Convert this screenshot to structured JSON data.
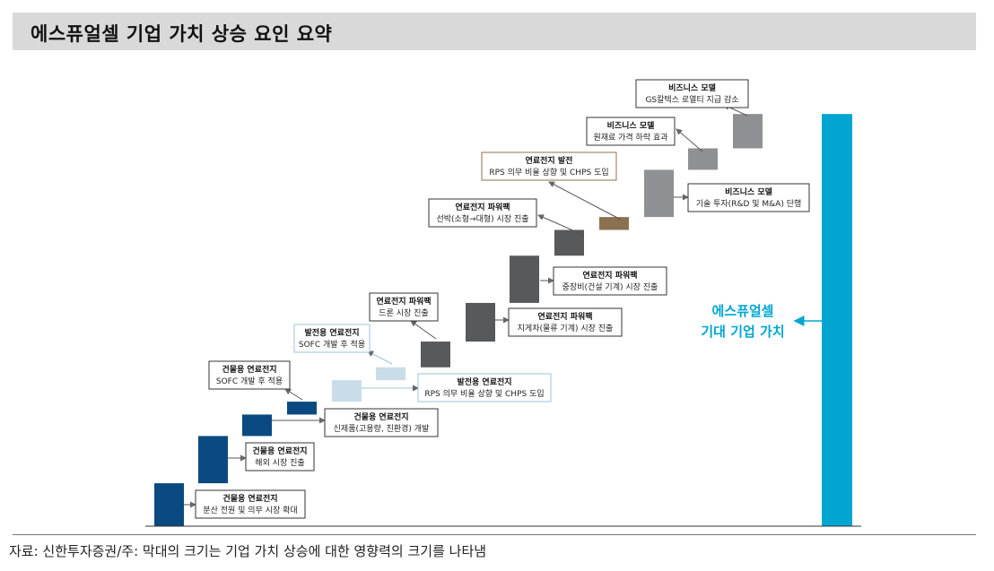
{
  "header": {
    "title": "에스퓨얼셀 기업 가치 상승 요인 요약"
  },
  "footer": {
    "source": "자료: 신한투자증권/주: 막대의 크기는 기업 가치 상승에 대한 영향력의 크기를 나타냄"
  },
  "colors": {
    "building": "#0b4a80",
    "power_gen": "#c9dde9",
    "powerpack": "#58595b",
    "power_gen_rps": "#8c7150",
    "business": "#8e9093",
    "total": "#00a6d0",
    "total_label": "#00a6d0"
  },
  "chart_data": {
    "type": "bar",
    "title": "",
    "note": "waterfall-style: floating bars, magnitude = impact on enterprise value",
    "ylim": [
      0,
      100
    ],
    "factors": [
      {
        "id": "f1",
        "group": "building",
        "title": "건물용 연료전지",
        "desc": "분산 전원 및 의무 시장 확대",
        "start": 0,
        "end": 10
      },
      {
        "id": "f2",
        "group": "building",
        "title": "건물용 연료전지",
        "desc": "해외 시장 진출",
        "start": 10,
        "end": 21
      },
      {
        "id": "f3",
        "group": "building",
        "title": "건물용 연료전지",
        "desc": "신제품(고용량, 친환경) 개발",
        "start": 21,
        "end": 26
      },
      {
        "id": "f4",
        "group": "building",
        "title": "건물용 연료전지",
        "desc": "SOFC 개발 후 적용",
        "start": 26,
        "end": 29
      },
      {
        "id": "f5",
        "group": "power_gen",
        "title": "발전용 연료전지",
        "desc": "RPS 의무 비율 상향 및 CHPS 도입",
        "start": 29,
        "end": 34
      },
      {
        "id": "f6",
        "group": "power_gen",
        "title": "발전용 연료전지",
        "desc": "SOFC 개발 후 적용",
        "start": 34,
        "end": 37
      },
      {
        "id": "f7",
        "group": "powerpack",
        "title": "연료전지 파워팩",
        "desc": "드론 시장 진출",
        "start": 37,
        "end": 43
      },
      {
        "id": "f8",
        "group": "powerpack",
        "title": "연료전지 파워팩",
        "desc": "지게차(물류 기계) 시장 진출",
        "start": 43,
        "end": 52
      },
      {
        "id": "f9",
        "group": "powerpack",
        "title": "연료전지 파워팩",
        "desc": "중장비(건설 기계) 시장 진출",
        "start": 52,
        "end": 63
      },
      {
        "id": "f10",
        "group": "powerpack",
        "title": "연료전지 파워팩",
        "desc": "선박(소형→대형) 시장 진출",
        "start": 63,
        "end": 69
      },
      {
        "id": "f11",
        "group": "power_gen_rps",
        "title": "연료전지 발전",
        "desc": "RPS 의무 비율 상향 및 CHPS 도입",
        "start": 69,
        "end": 72
      },
      {
        "id": "f12",
        "group": "business",
        "title": "비즈니스 모델",
        "desc": "기술 투자(R&D 및 M&A) 단행",
        "start": 72,
        "end": 83
      },
      {
        "id": "f13",
        "group": "business",
        "title": "비즈니스 모델",
        "desc": "원재료 가격 하락 효과",
        "start": 83,
        "end": 88
      },
      {
        "id": "f14",
        "group": "business",
        "title": "비즈니스 모델",
        "desc": "GS칼텍스 로열티 지급 감소",
        "start": 88,
        "end": 96
      }
    ],
    "total": {
      "label_line1": "에스퓨얼셀",
      "label_line2": "기대 기업 가치",
      "value": 96
    }
  }
}
